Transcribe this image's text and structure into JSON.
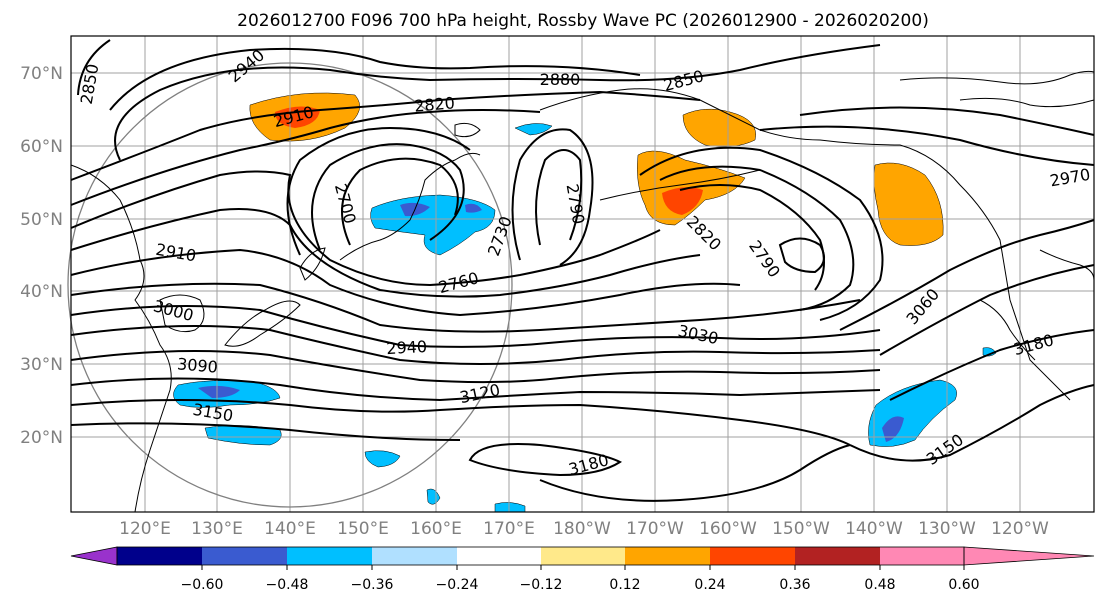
{
  "title": "2026012700 F096 700 hPa height, Rossby Wave PC (2026012900 - 2026020200)",
  "lat_labels": [
    "70°N",
    "60°N",
    "50°N",
    "40°N",
    "30°N",
    "20°N"
  ],
  "lon_labels": [
    "120°E",
    "130°E",
    "140°E",
    "150°E",
    "160°E",
    "170°E",
    "180°W",
    "170°W",
    "160°W",
    "150°W",
    "140°W",
    "130°W",
    "120°W"
  ],
  "colorbar": {
    "ticks": [
      "−0.60",
      "−0.48",
      "−0.36",
      "−0.24",
      "−0.12",
      "0.12",
      "0.24",
      "0.36",
      "0.48",
      "0.60"
    ],
    "colors": [
      "#9932CC",
      "#00008B",
      "#3A5BD0",
      "#00BFFF",
      "#B0E0FF",
      "#FFFFFF",
      "#FFE98A",
      "#FFA500",
      "#FF4500",
      "#B22222",
      "#FF88B4"
    ]
  },
  "contour_labels": [
    "2850",
    "2940",
    "2910",
    "2820",
    "2880",
    "2850",
    "2700",
    "2730",
    "2790",
    "2910",
    "3000",
    "2760",
    "2820",
    "2790",
    "2970",
    "3060",
    "2940",
    "3030",
    "3090",
    "3120",
    "3180",
    "3150",
    "3180",
    "3150"
  ],
  "colors": {
    "positive_anomaly": "#FFA500",
    "strong_positive": "#FF4500",
    "negative_anomaly": "#00BFFF",
    "strong_negative": "#3A5BD0"
  }
}
